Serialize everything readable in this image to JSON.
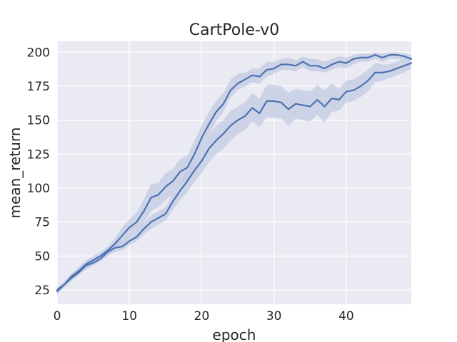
{
  "chart_data": {
    "type": "line",
    "title": "CartPole-v0",
    "xlabel": "epoch",
    "ylabel": "mean_return",
    "xlim": [
      0,
      49
    ],
    "ylim": [
      14.5,
      208
    ],
    "xticks": [
      0,
      10,
      20,
      30,
      40
    ],
    "yticks": [
      25,
      50,
      75,
      100,
      125,
      150,
      175,
      200
    ],
    "grid": true,
    "legend": "none",
    "colors": {
      "background": "#eaeaf2",
      "grid": "#ffffff",
      "line": "#4c72b0",
      "band": "#c3cbe3"
    },
    "x": [
      0,
      1,
      2,
      3,
      4,
      5,
      6,
      7,
      8,
      9,
      10,
      11,
      12,
      13,
      14,
      15,
      16,
      17,
      18,
      19,
      20,
      21,
      22,
      23,
      24,
      25,
      26,
      27,
      28,
      29,
      30,
      31,
      32,
      33,
      34,
      35,
      36,
      37,
      38,
      39,
      40,
      41,
      42,
      43,
      44,
      45,
      46,
      47,
      48,
      49
    ],
    "series": [
      {
        "values": [
          25,
          29,
          35,
          39,
          44,
          47,
          50,
          54,
          59,
          65,
          71,
          75,
          83,
          93,
          95,
          101,
          105,
          112,
          115,
          125,
          137,
          147,
          156,
          162,
          172,
          177,
          180,
          183,
          182,
          187,
          188,
          191,
          191,
          190,
          193,
          190,
          190,
          188,
          191,
          193,
          192,
          195,
          196,
          196,
          198,
          196,
          198,
          198,
          197,
          195
        ],
        "lower": [
          23,
          27,
          32,
          36,
          41,
          44,
          47,
          51,
          55,
          59,
          65,
          68,
          74,
          83,
          86,
          91,
          96,
          103,
          107,
          116,
          128,
          139,
          149,
          156,
          167,
          172,
          175,
          178,
          177,
          182,
          184,
          187,
          187,
          186,
          189,
          186,
          186,
          185,
          187,
          189,
          188,
          191,
          193,
          193,
          195,
          193,
          195,
          195,
          194,
          193
        ],
        "upper": [
          27,
          31,
          37,
          42,
          47,
          50,
          53,
          57,
          63,
          71,
          77,
          82,
          92,
          103,
          104,
          111,
          114,
          121,
          124,
          135,
          146,
          156,
          164,
          170,
          180,
          184,
          185,
          188,
          188,
          193,
          193,
          195,
          196,
          194,
          197,
          195,
          195,
          193,
          195,
          197,
          196,
          198,
          199,
          199,
          200,
          199,
          200,
          200,
          199,
          198
        ]
      },
      {
        "values": [
          24,
          29,
          34,
          38,
          43,
          45,
          48,
          53,
          56,
          57,
          61,
          64,
          70,
          75,
          78,
          81,
          90,
          98,
          105,
          113,
          120,
          129,
          135,
          140,
          146,
          150,
          153,
          159,
          155,
          164,
          164,
          163,
          158,
          162,
          161,
          160,
          165,
          160,
          166,
          165,
          171,
          172,
          175,
          179,
          185,
          185,
          186,
          188,
          190,
          192
        ],
        "lower": [
          22,
          27,
          32,
          36,
          40,
          43,
          46,
          50,
          53,
          54,
          58,
          61,
          66,
          70,
          73,
          76,
          84,
          91,
          97,
          105,
          111,
          119,
          125,
          129,
          135,
          140,
          143,
          149,
          145,
          152,
          152,
          151,
          146,
          151,
          150,
          149,
          154,
          148,
          156,
          157,
          163,
          164,
          167,
          171,
          178,
          179,
          181,
          183,
          185,
          188
        ],
        "upper": [
          26,
          31,
          36,
          41,
          46,
          48,
          51,
          56,
          59,
          61,
          65,
          68,
          74,
          80,
          83,
          86,
          96,
          105,
          113,
          121,
          129,
          139,
          146,
          150,
          157,
          160,
          163,
          170,
          166,
          176,
          176,
          175,
          170,
          173,
          172,
          171,
          176,
          172,
          177,
          173,
          179,
          180,
          183,
          187,
          192,
          191,
          191,
          193,
          195,
          196
        ]
      }
    ]
  }
}
